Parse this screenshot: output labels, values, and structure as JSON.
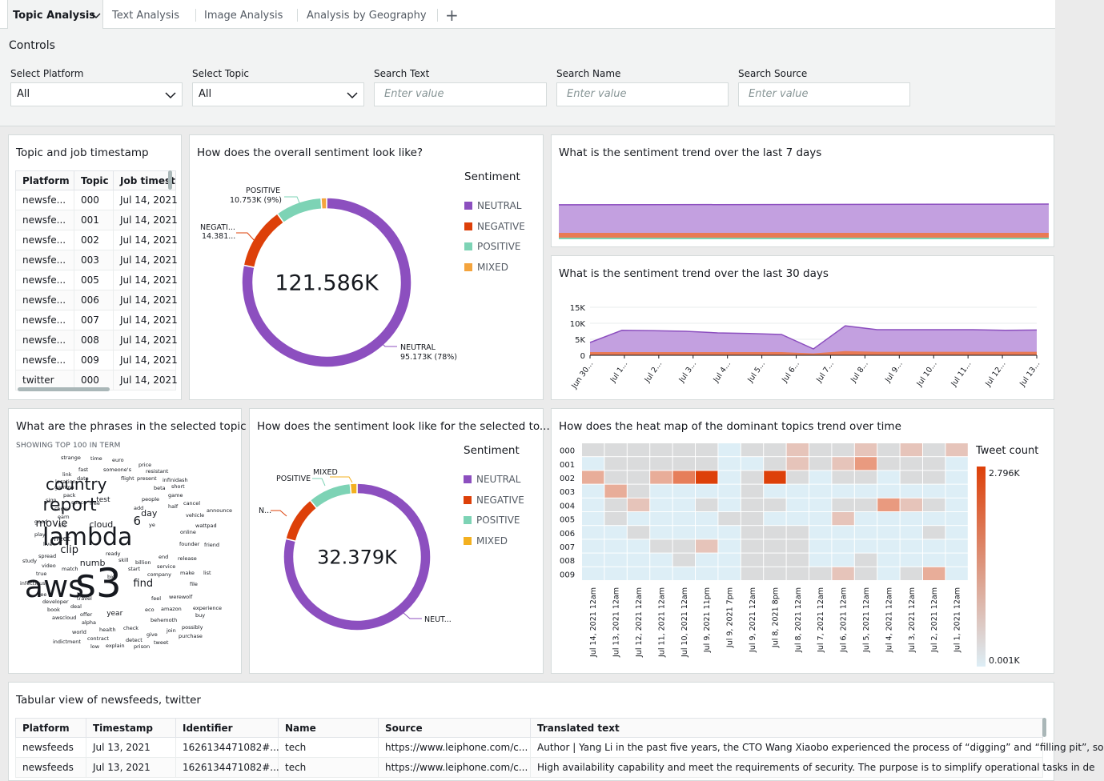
{
  "tabs": [
    {
      "label": "Topic Analysis"
    },
    {
      "label": "Text Analysis"
    },
    {
      "label": "Image Analysis"
    },
    {
      "label": "Analysis by Geography"
    }
  ],
  "add_tab": "+",
  "controls": {
    "title": "Controls",
    "platform": {
      "label": "Select Platform",
      "value": "All"
    },
    "topic": {
      "label": "Select Topic",
      "value": "All"
    },
    "search_text": {
      "label": "Search Text",
      "placeholder": "Enter value"
    },
    "search_name": {
      "label": "Search Name",
      "placeholder": "Enter value"
    },
    "search_source": {
      "label": "Search Source",
      "placeholder": "Enter value"
    }
  },
  "topic_table": {
    "title": "Topic and job timestamp",
    "headers": [
      "Platform",
      "Topic",
      "Job timest"
    ],
    "rows": [
      [
        "newsfe...",
        "000",
        "Jul 14, 2021"
      ],
      [
        "newsfe...",
        "001",
        "Jul 14, 2021"
      ],
      [
        "newsfe...",
        "002",
        "Jul 14, 2021"
      ],
      [
        "newsfe...",
        "003",
        "Jul 14, 2021"
      ],
      [
        "newsfe...",
        "005",
        "Jul 14, 2021"
      ],
      [
        "newsfe...",
        "006",
        "Jul 14, 2021"
      ],
      [
        "newsfe...",
        "007",
        "Jul 14, 2021"
      ],
      [
        "newsfe...",
        "008",
        "Jul 14, 2021"
      ],
      [
        "newsfe...",
        "009",
        "Jul 14, 2021"
      ],
      [
        "twitter",
        "000",
        "Jul 14, 2021"
      ]
    ]
  },
  "colors": {
    "neutral": "#8c4fbf",
    "negative": "#dd4009",
    "positive": "#7dd3b5",
    "mixed": "#f4a43d",
    "mixed2": "#f3b020"
  },
  "overall": {
    "title": "How does the overall sentiment look like?",
    "center": "121.586K",
    "legend_title": "Sentiment",
    "legend": [
      "NEUTRAL",
      "NEGATIVE",
      "POSITIVE",
      "MIXED"
    ],
    "labels": {
      "positive": [
        "POSITIVE",
        "10.753K (9%)"
      ],
      "negative": [
        "NEGATI...",
        "14.381..."
      ],
      "neutral": [
        "NEUTRAL",
        "95.173K (78%)"
      ]
    }
  },
  "trend7": {
    "title": "What is the sentiment trend over the last 7 days"
  },
  "trend30": {
    "title": "What is the sentiment trend over the last 30 days",
    "yticks": [
      "15K",
      "10K",
      "5K",
      "0"
    ],
    "xticks": [
      "Jun 30...",
      "Jul 1...",
      "Jul 2...",
      "Jul 3...",
      "Jul 4...",
      "Jul 5...",
      "Jul 6...",
      "Jul 7...",
      "Jul 8...",
      "Jul 9...",
      "Jul 10...",
      "Jul 11...",
      "Jul 12...",
      "Jul 13..."
    ]
  },
  "phrases": {
    "title": "What are the phrases in the selected topic",
    "subtitle": "SHOWING TOP 100 IN TERM"
  },
  "selected": {
    "title": "How does the sentiment look like for the selected to...",
    "center": "32.379K",
    "legend_title": "Sentiment",
    "legend": [
      "NEUTRAL",
      "NEGATIVE",
      "POSITIVE",
      "MIXED"
    ],
    "labels": {
      "mixed": "MIXED",
      "positive": "POSITIVE",
      "negative": "N...",
      "neutral": "NEUT..."
    }
  },
  "heatmap": {
    "title": "How does the heat map of the dominant topics trend over time",
    "legend_title": "Tweet count",
    "max_label": "2.796K",
    "min_label": "0.001K",
    "rows": [
      "000",
      "001",
      "002",
      "003",
      "004",
      "005",
      "006",
      "007",
      "008",
      "009"
    ],
    "cols": [
      "Jul 14, 2021 12am",
      "Jul 13, 2021 12am",
      "Jul 12, 2021 12am",
      "Jul 11, 2021 12am",
      "Jul 10, 2021 12am",
      "Jul 9, 2021 11pm",
      "Jul 9, 2021 7pm",
      "Jul 9, 2021 12am",
      "Jul 8, 2021 8pm",
      "Jul 8, 2021 12am",
      "Jul 7, 2021 12am",
      "Jul 6, 2021 12am",
      "Jul 5, 2021 12am",
      "Jul 4, 2021 12am",
      "Jul 3, 2021 12am",
      "Jul 2, 2021 12am",
      "Jul 1, 2021 12am"
    ]
  },
  "feeds": {
    "title": "Tabular view of newsfeeds, twitter",
    "headers": [
      "Platform",
      "Timestamp",
      "Identifier",
      "Name",
      "Source",
      "Translated text"
    ],
    "rows": [
      [
        "newsfeeds",
        "Jul 13, 2021",
        "1626134471082#...",
        "tech",
        "https://www.leiphone.com/c...",
        "Author | Yang Li in the past five years, the CTO Wang Xiaobo experienced the process of “digging” and “filling pit”, so"
      ],
      [
        "newsfeeds",
        "Jul 13, 2021",
        "1626134471082#...",
        "tech",
        "https://www.leiphone.com/c...",
        "High availability capability and meet the requirements of security. The purpose is to simplify operational tasks in de"
      ]
    ]
  }
}
